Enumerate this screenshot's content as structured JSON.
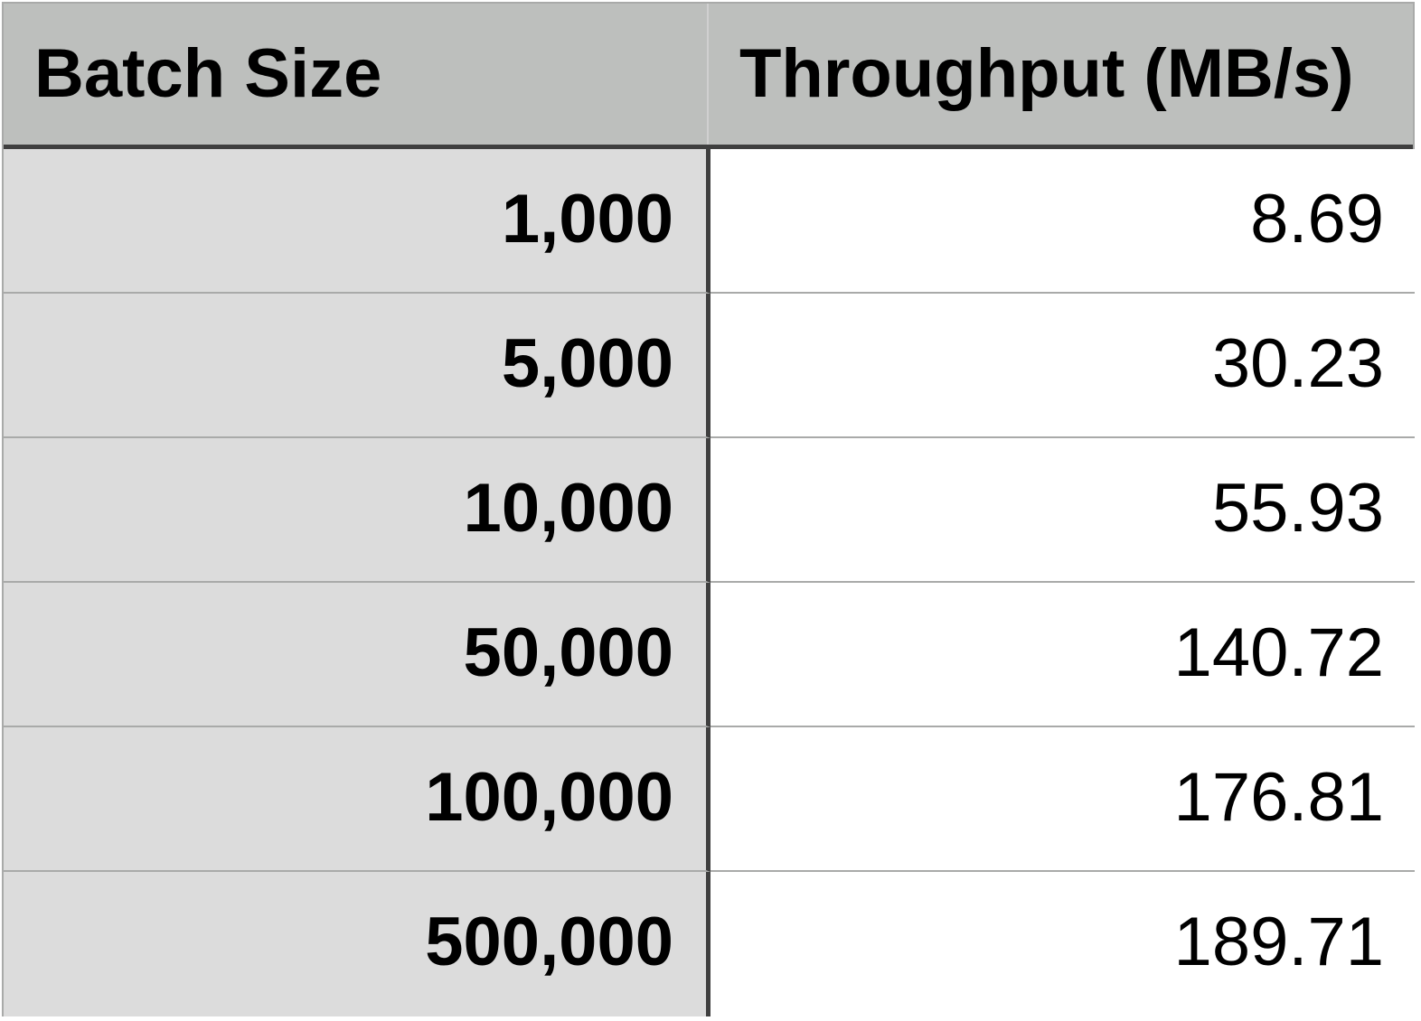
{
  "table": {
    "headers": [
      "Batch Size",
      "Throughput (MB/s)"
    ],
    "rows": [
      [
        "1,000",
        "8.69"
      ],
      [
        "5,000",
        "30.23"
      ],
      [
        "10,000",
        "55.93"
      ],
      [
        "50,000",
        "140.72"
      ],
      [
        "100,000",
        "176.81"
      ],
      [
        "500,000",
        "189.71"
      ]
    ]
  },
  "colors": {
    "header_background": "#bdbfbd",
    "row_label_background": "#dcdcdc",
    "value_background": "#ffffff",
    "grid_line": "#a9aaa9",
    "heavy_divider": "#3f3f3f"
  }
}
